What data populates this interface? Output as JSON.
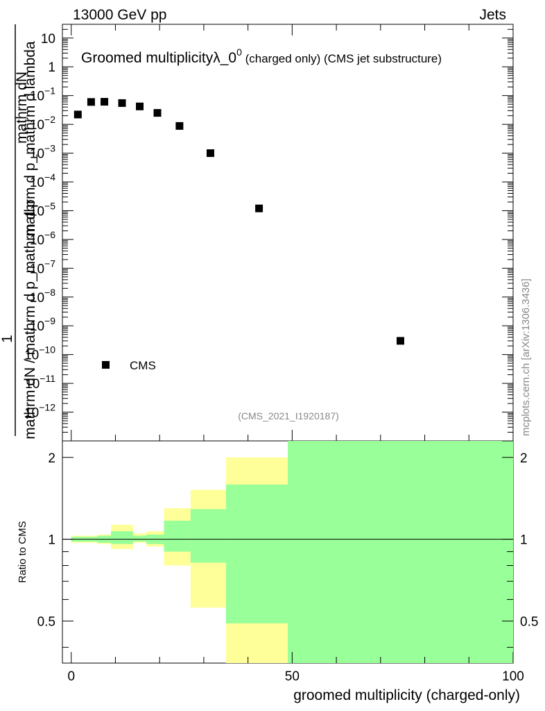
{
  "header": {
    "energy": "13000 GeV pp",
    "process": "Jets"
  },
  "credit": "mcplots.cern.ch [arXiv:1306.3436]",
  "analysis_id": "(CMS_2021_I1920187)",
  "colors": {
    "band_inner": "#99ff99",
    "band_outer": "#ffff99",
    "marker": "#000000",
    "credit": "#888888"
  },
  "chart_data": [
    {
      "type": "scatter",
      "panel": "main",
      "title_main": "Groomed multiplicity",
      "title_lambda": "λ_0",
      "title_sup": "0",
      "title_rest": " (charged only) (CMS jet substructure)",
      "ylabel_top": "mathrm dN",
      "ylabel_bottom": "mathrm d p_mathrm d lambda",
      "ylabel_prefix": "1",
      "ylabel_mid": "mathrm dN / mathrm d p_mathrm d p",
      "ylabel_tail": "mathrm dN",
      "yscale": "log",
      "ylim": [
        1e-13,
        30
      ],
      "y_tick_labels": [
        {
          "base": "10",
          "exp": "",
          "value": 10
        },
        {
          "base": "1",
          "exp": "",
          "value": 1
        },
        {
          "base": "10",
          "exp": "−1",
          "value": 0.1
        },
        {
          "base": "10",
          "exp": "−2",
          "value": 0.01
        },
        {
          "base": "10",
          "exp": "−3",
          "value": 0.001
        },
        {
          "base": "10",
          "exp": "−4",
          "value": 0.0001
        },
        {
          "base": "10",
          "exp": "−5",
          "value": 1e-05
        },
        {
          "base": "10",
          "exp": "−6",
          "value": 1e-06
        },
        {
          "base": "10",
          "exp": "−7",
          "value": 1e-07
        },
        {
          "base": "10",
          "exp": "−8",
          "value": 1e-08
        },
        {
          "base": "10",
          "exp": "−9",
          "value": 1e-09
        },
        {
          "base": "10",
          "exp": "−10",
          "value": 1e-10
        },
        {
          "base": "10",
          "exp": "−11",
          "value": 1e-11
        },
        {
          "base": "10",
          "exp": "−12",
          "value": 1e-12
        }
      ],
      "xlim": [
        -2,
        100
      ],
      "series": [
        {
          "name": "CMS",
          "x": [
            1.5,
            4.5,
            7.5,
            11.5,
            15.5,
            19.5,
            24.5,
            31.5,
            42.5,
            74.5
          ],
          "y": [
            0.022,
            0.06,
            0.061,
            0.055,
            0.042,
            0.025,
            0.0088,
            0.001,
            1.2e-05,
            3e-10
          ]
        }
      ],
      "legend": "CMS",
      "legend_position": "lower-left"
    },
    {
      "type": "area",
      "panel": "ratio",
      "ylabel": "Ratio to CMS",
      "xlabel": "groomed multiplicity (charged-only)",
      "xlim": [
        -2,
        100
      ],
      "ylim": [
        0.35,
        2.3
      ],
      "x_tick_labels": [
        {
          "text": "0",
          "value": 0
        },
        {
          "text": "50",
          "value": 50
        },
        {
          "text": "100",
          "value": 100
        }
      ],
      "y_tick_labels": [
        {
          "text": "2",
          "value": 2
        },
        {
          "text": "1",
          "value": 1
        },
        {
          "text": "0.5",
          "value": 0.5
        }
      ],
      "reference_line": 1,
      "bins": [
        {
          "lo": 0,
          "hi": 3,
          "outer": [
            0.97,
            1.03
          ],
          "inner": [
            0.98,
            1.02
          ]
        },
        {
          "lo": 3,
          "hi": 6,
          "outer": [
            0.97,
            1.03
          ],
          "inner": [
            0.98,
            1.02
          ]
        },
        {
          "lo": 6,
          "hi": 9,
          "outer": [
            0.96,
            1.04
          ],
          "inner": [
            0.97,
            1.03
          ]
        },
        {
          "lo": 9,
          "hi": 14,
          "outer": [
            0.92,
            1.13
          ],
          "inner": [
            0.96,
            1.07
          ]
        },
        {
          "lo": 14,
          "hi": 17,
          "outer": [
            0.97,
            1.05
          ],
          "inner": [
            0.98,
            1.03
          ]
        },
        {
          "lo": 17,
          "hi": 21,
          "outer": [
            0.94,
            1.07
          ],
          "inner": [
            0.96,
            1.04
          ]
        },
        {
          "lo": 21,
          "hi": 27,
          "outer": [
            0.8,
            1.3
          ],
          "inner": [
            0.9,
            1.17
          ]
        },
        {
          "lo": 27,
          "hi": 35,
          "outer": [
            0.56,
            1.52
          ],
          "inner": [
            0.82,
            1.29
          ]
        },
        {
          "lo": 35,
          "hi": 49,
          "outer": [
            0.35,
            2.0
          ],
          "inner": [
            0.49,
            1.59
          ]
        },
        {
          "lo": 49,
          "hi": 100,
          "outer": [
            0.35,
            2.3
          ],
          "inner": [
            0.35,
            2.3
          ]
        }
      ]
    }
  ]
}
